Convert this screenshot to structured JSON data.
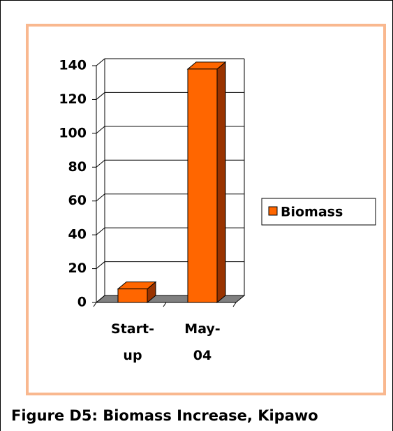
{
  "chart_data": {
    "type": "bar3d",
    "caption": "Figure D5: Biomass Increase, Kipawo",
    "categories": [
      "Start-up",
      "May-04"
    ],
    "series": [
      {
        "name": "Biomass",
        "color": "#ff6600",
        "side_color": "#993300",
        "values": [
          8,
          138
        ]
      }
    ],
    "ylim": [
      0,
      140
    ],
    "yticks": [
      0,
      20,
      40,
      60,
      80,
      100,
      120,
      140
    ],
    "grid": true,
    "legend": "right"
  }
}
